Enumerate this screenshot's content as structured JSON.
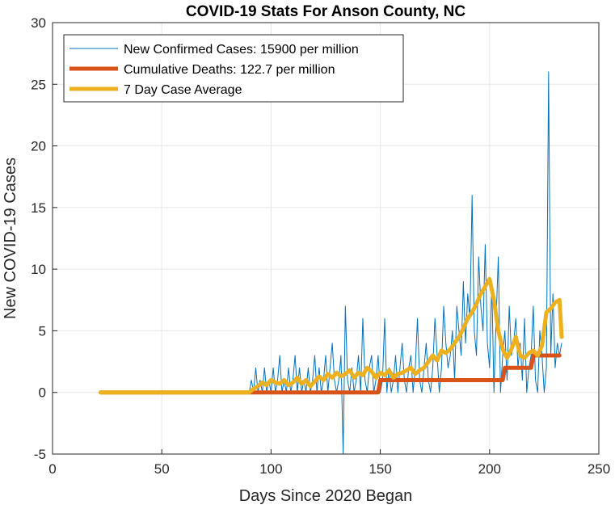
{
  "chart_data": {
    "type": "line",
    "title": "COVID-19 Stats For Anson County, NC",
    "xlabel": "Days Since 2020 Began",
    "ylabel": "New COVID-19 Cases",
    "xlim": [
      0,
      250
    ],
    "ylim": [
      -5,
      30
    ],
    "xticks": [
      "0",
      "50",
      "100",
      "150",
      "200",
      "250"
    ],
    "yticks": [
      "-5",
      "0",
      "5",
      "10",
      "15",
      "20",
      "25",
      "30"
    ],
    "grid": true,
    "legend_position": "top-left",
    "series": [
      {
        "name": "New Confirmed Cases: 15900 per million",
        "color": "#0072BD",
        "style": "thin",
        "x": [
          22,
          90,
          91,
          92,
          93,
          94,
          95,
          96,
          97,
          98,
          99,
          100,
          101,
          102,
          103,
          104,
          105,
          106,
          107,
          108,
          109,
          110,
          111,
          112,
          113,
          114,
          115,
          116,
          117,
          118,
          119,
          120,
          121,
          122,
          123,
          124,
          125,
          126,
          127,
          128,
          129,
          130,
          131,
          132,
          133,
          134,
          135,
          136,
          137,
          138,
          139,
          140,
          141,
          142,
          143,
          144,
          145,
          146,
          147,
          148,
          149,
          150,
          151,
          152,
          153,
          154,
          155,
          156,
          157,
          158,
          159,
          160,
          161,
          162,
          163,
          164,
          165,
          166,
          167,
          168,
          169,
          170,
          171,
          172,
          173,
          174,
          175,
          176,
          177,
          178,
          179,
          180,
          181,
          182,
          183,
          184,
          185,
          186,
          187,
          188,
          189,
          190,
          191,
          192,
          193,
          194,
          195,
          196,
          197,
          198,
          199,
          200,
          201,
          202,
          203,
          204,
          205,
          206,
          207,
          208,
          209,
          210,
          211,
          212,
          213,
          214,
          215,
          216,
          217,
          218,
          219,
          220,
          221,
          222,
          223,
          224,
          225,
          226,
          227,
          228,
          229,
          230,
          231,
          232,
          233
        ],
        "y": [
          0,
          0,
          1,
          0,
          2,
          0,
          1,
          0,
          2,
          0,
          1,
          0,
          2,
          0,
          1,
          3,
          0,
          1,
          0,
          2,
          0,
          1,
          3,
          0,
          2,
          0,
          1,
          0,
          2,
          0,
          1,
          3,
          0,
          2,
          0,
          1,
          3,
          0,
          2,
          4,
          1,
          0,
          1,
          3,
          -5,
          7,
          1,
          0,
          2,
          0,
          1,
          3,
          0,
          6,
          1,
          0,
          2,
          3,
          0,
          1,
          3,
          0,
          1,
          6,
          0,
          2,
          0,
          1,
          3,
          0,
          2,
          4,
          1,
          0,
          2,
          3,
          0,
          2,
          6,
          1,
          0,
          2,
          4,
          1,
          0,
          2,
          6,
          3,
          0,
          2,
          7,
          4,
          2,
          3,
          5,
          1,
          7,
          5,
          3,
          9,
          4,
          8,
          6,
          16,
          5,
          3,
          11,
          7,
          5,
          12,
          4,
          2,
          9,
          0,
          6,
          11,
          0,
          3,
          5,
          1,
          7,
          3,
          4,
          6,
          2,
          4,
          1,
          6,
          0,
          2,
          3,
          7,
          1,
          0,
          5,
          3,
          0,
          2,
          26,
          3,
          8,
          2,
          4,
          3,
          4
        ],
        "y_note_removed": true
      },
      {
        "name": "Cumulative Deaths: 122.7 per million",
        "color": "#D95319",
        "style": "thick",
        "x": [
          22,
          149,
          150,
          206,
          207,
          219,
          220,
          232
        ],
        "y": [
          0,
          0,
          1,
          1,
          2,
          2,
          3,
          3
        ]
      },
      {
        "name": "7 Day Case Average",
        "color": "#EDB120",
        "style": "thick",
        "x": [
          22,
          90,
          92,
          94,
          96,
          98,
          100,
          102,
          104,
          106,
          108,
          110,
          112,
          114,
          116,
          118,
          120,
          122,
          124,
          126,
          128,
          130,
          132,
          134,
          136,
          138,
          140,
          142,
          144,
          146,
          148,
          150,
          152,
          154,
          156,
          158,
          160,
          162,
          164,
          166,
          168,
          170,
          172,
          174,
          176,
          178,
          180,
          182,
          184,
          186,
          188,
          190,
          192,
          194,
          196,
          198,
          200,
          202,
          204,
          206,
          208,
          210,
          212,
          214,
          216,
          218,
          220,
          222,
          224,
          226,
          228,
          230,
          232,
          233
        ],
        "y": [
          0,
          0,
          0.3,
          0.5,
          0.8,
          0.6,
          1,
          0.8,
          0.7,
          1,
          0.6,
          0.8,
          1.2,
          0.7,
          1,
          0.5,
          0.9,
          1.3,
          1,
          1.5,
          1.2,
          1.6,
          1.3,
          1.5,
          1.8,
          1.2,
          1.6,
          1.4,
          2,
          1.7,
          1.2,
          1.6,
          1.4,
          1.8,
          1.2,
          1.5,
          1.6,
          1.8,
          2,
          1.5,
          1.8,
          2,
          2.5,
          3,
          2.6,
          3.4,
          3.2,
          3.5,
          4,
          4.5,
          5.2,
          6,
          6.5,
          7.2,
          8,
          8.6,
          9.2,
          7.5,
          5,
          3.5,
          2.8,
          3.5,
          4.5,
          3,
          2.8,
          3.2,
          3.4,
          3,
          3.8,
          6.5,
          6.8,
          7.3,
          7.5,
          4.5
        ]
      }
    ]
  }
}
